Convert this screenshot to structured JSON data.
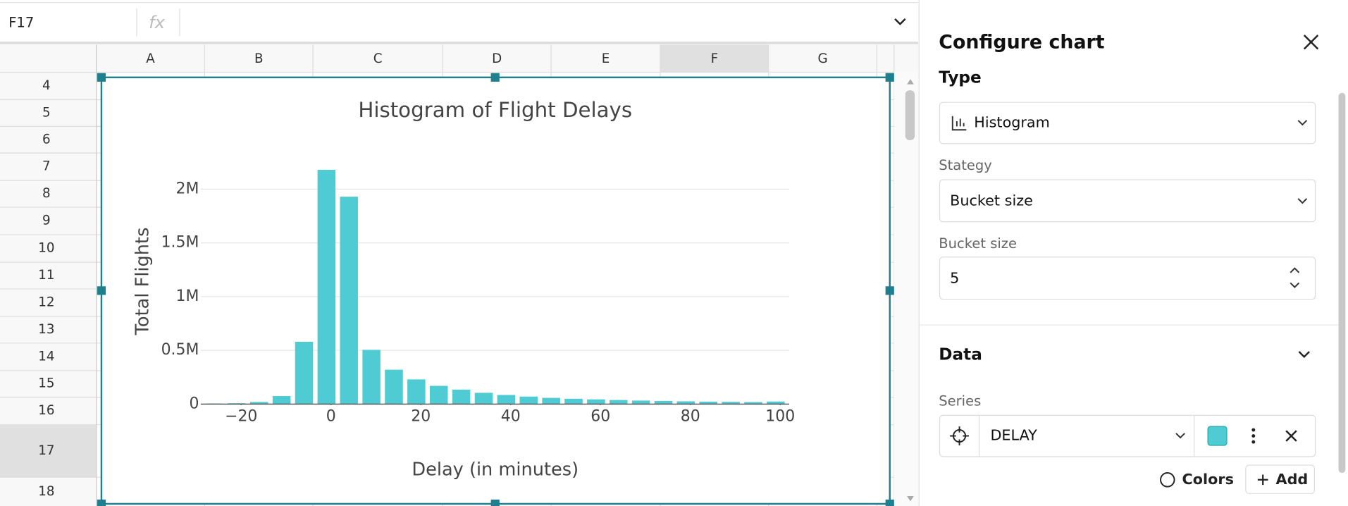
{
  "formula_bar": {
    "cell_ref": "F17",
    "fx": "fx"
  },
  "columns": [
    "A",
    "B",
    "C",
    "D",
    "E",
    "F",
    "G"
  ],
  "rows": [
    4,
    5,
    6,
    7,
    8,
    9,
    10,
    11,
    12,
    13,
    14,
    15,
    16,
    17,
    18
  ],
  "chart_data": {
    "type": "histogram",
    "title": "Histogram of Flight Delays",
    "x_label": "Delay (in minutes)",
    "y_label": "Total Flights",
    "bins": [
      -28.5,
      -23.5,
      -18.5,
      -13.5,
      -8.5,
      -3.5,
      1.5,
      6.5,
      11.5,
      16.5,
      21.5,
      26.5,
      31.5,
      36.5,
      41.5,
      46.5,
      51.5,
      56.5,
      61.5,
      66.5,
      71.5,
      76.5,
      81.5,
      86.5,
      91.5,
      96.5,
      101.5
    ],
    "values": [
      5000,
      8000,
      20000,
      75000,
      580000,
      2180000,
      1930000,
      505000,
      320000,
      230000,
      170000,
      135000,
      105000,
      85000,
      70000,
      58000,
      50000,
      44000,
      38000,
      33000,
      29000,
      26000,
      23000,
      21000,
      19000,
      24000
    ],
    "color": "#4ecbd3",
    "xlim": [
      -29,
      102
    ],
    "ylim": [
      0,
      2250000
    ],
    "xticks": [
      {
        "value": -20,
        "label": "−20"
      },
      0,
      20,
      40,
      60,
      80,
      100
    ],
    "yticks": [
      0,
      {
        "value": 500000,
        "label": "0.5M"
      },
      {
        "value": 1000000,
        "label": "1M"
      },
      {
        "value": 1500000,
        "label": "1.5M"
      },
      {
        "value": 2000000,
        "label": "2M"
      }
    ],
    "grid": true
  },
  "panel": {
    "title": "Configure chart",
    "type_label": "Type",
    "type_value": "Histogram",
    "strategy_label": "Stategy",
    "strategy_value": "Bucket size",
    "bucket_size_label": "Bucket size",
    "bucket_size_value": 5,
    "data_heading": "Data",
    "series_label": "Series",
    "series_value": "DELAY",
    "colors_button": "Colors",
    "add_button": "Add"
  }
}
